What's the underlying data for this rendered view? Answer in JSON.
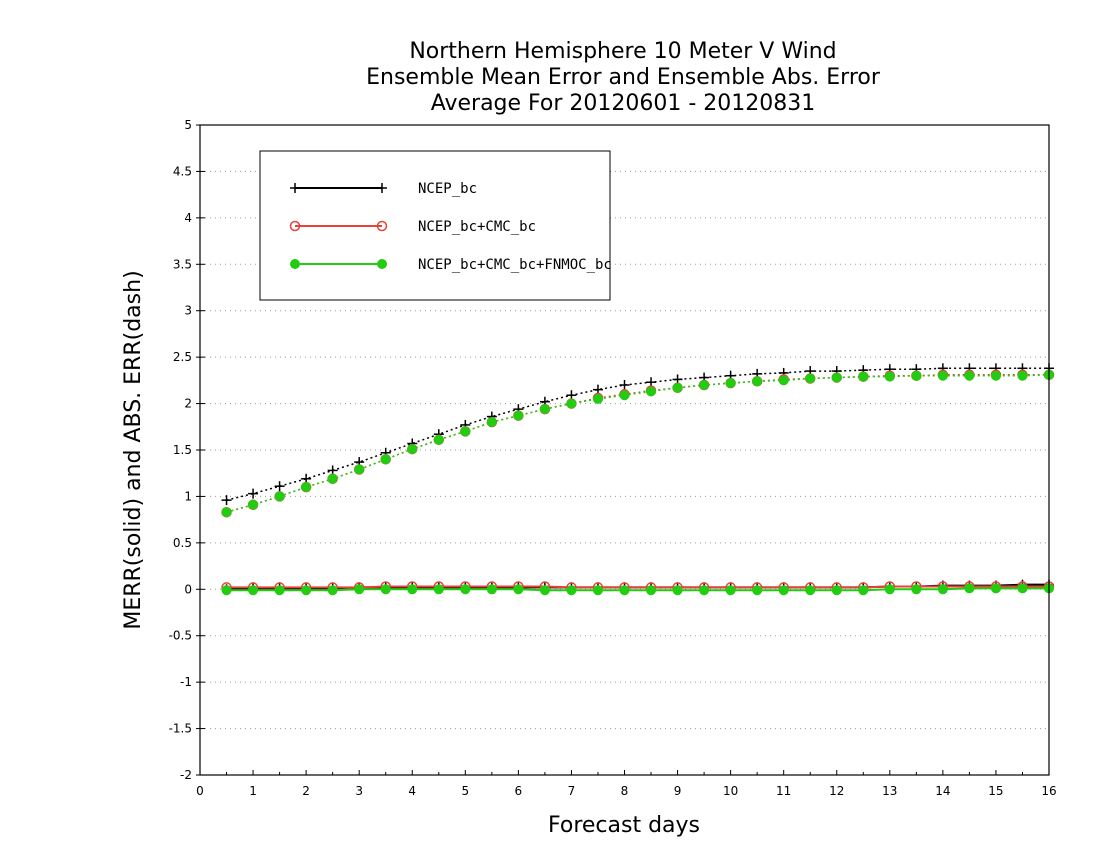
{
  "chart_data": {
    "type": "line",
    "title_lines": [
      "Northern Hemisphere 10 Meter V Wind",
      "Ensemble Mean Error and Ensemble Abs. Error",
      "Average For 20120601 - 20120831"
    ],
    "xlabel": "Forecast days",
    "ylabel": "MERR(solid) and ABS. ERR(dash)",
    "xlim": [
      0,
      16
    ],
    "ylim": [
      -2,
      5
    ],
    "x_ticks": [
      0,
      1,
      2,
      3,
      4,
      5,
      6,
      7,
      8,
      9,
      10,
      11,
      12,
      13,
      14,
      15,
      16
    ],
    "y_ticks": [
      -2,
      -1.5,
      -1,
      -0.5,
      0,
      0.5,
      1,
      1.5,
      2,
      2.5,
      3,
      3.5,
      4,
      4.5,
      5
    ],
    "y_tick_labels": [
      "-2",
      "-1.5",
      "-1",
      "-0.5",
      "0",
      "0.5",
      "1",
      "1.5",
      "2",
      "2.5",
      "3",
      "3.5",
      "4",
      "4.5",
      "5"
    ],
    "grid": "horizontal dotted",
    "legend_position": "top-left",
    "x": [
      0.5,
      1,
      1.5,
      2,
      2.5,
      3,
      3.5,
      4,
      4.5,
      5,
      5.5,
      6,
      6.5,
      7,
      7.5,
      8,
      8.5,
      9,
      9.5,
      10,
      10.5,
      11,
      11.5,
      12,
      12.5,
      13,
      13.5,
      14,
      14.5,
      15,
      15.5,
      16
    ],
    "series": [
      {
        "name": "NCEP_bc",
        "color": "#000000",
        "marker": "plus",
        "abs_err": [
          0.96,
          1.03,
          1.11,
          1.19,
          1.28,
          1.37,
          1.47,
          1.57,
          1.67,
          1.77,
          1.86,
          1.94,
          2.02,
          2.09,
          2.15,
          2.2,
          2.23,
          2.26,
          2.28,
          2.3,
          2.32,
          2.33,
          2.35,
          2.35,
          2.36,
          2.37,
          2.37,
          2.38,
          2.38,
          2.38,
          2.38,
          2.38
        ],
        "mean_err": [
          0.0,
          0.01,
          0.01,
          0.01,
          0.01,
          0.02,
          0.02,
          0.02,
          0.02,
          0.02,
          0.02,
          0.02,
          0.02,
          0.02,
          0.02,
          0.02,
          0.02,
          0.02,
          0.02,
          0.02,
          0.02,
          0.02,
          0.02,
          0.02,
          0.02,
          0.03,
          0.03,
          0.04,
          0.04,
          0.04,
          0.05,
          0.05
        ]
      },
      {
        "name": "NCEP_bc+CMC_bc",
        "color": "#e8413a",
        "marker": "open-circle",
        "abs_err": [
          0.83,
          0.91,
          1.0,
          1.1,
          1.19,
          1.29,
          1.4,
          1.51,
          1.61,
          1.7,
          1.8,
          1.87,
          1.94,
          2.0,
          2.06,
          2.1,
          2.14,
          2.17,
          2.2,
          2.22,
          2.24,
          2.26,
          2.27,
          2.28,
          2.29,
          2.3,
          2.3,
          2.31,
          2.31,
          2.31,
          2.31,
          2.31
        ],
        "mean_err": [
          0.02,
          0.02,
          0.02,
          0.02,
          0.02,
          0.02,
          0.03,
          0.03,
          0.03,
          0.03,
          0.03,
          0.03,
          0.03,
          0.02,
          0.02,
          0.02,
          0.02,
          0.02,
          0.02,
          0.02,
          0.02,
          0.02,
          0.02,
          0.02,
          0.02,
          0.03,
          0.03,
          0.03,
          0.03,
          0.03,
          0.03,
          0.03
        ]
      },
      {
        "name": "NCEP_bc+CMC_bc+FNMOC_bc",
        "color": "#22cc11",
        "marker": "filled-circle",
        "abs_err": [
          0.83,
          0.91,
          1.0,
          1.1,
          1.19,
          1.29,
          1.4,
          1.51,
          1.61,
          1.7,
          1.8,
          1.87,
          1.94,
          2.0,
          2.05,
          2.09,
          2.13,
          2.17,
          2.2,
          2.22,
          2.24,
          2.25,
          2.27,
          2.28,
          2.29,
          2.29,
          2.3,
          2.3,
          2.3,
          2.3,
          2.3,
          2.31
        ],
        "mean_err": [
          -0.01,
          -0.01,
          -0.01,
          -0.01,
          -0.01,
          0.0,
          0.0,
          0.0,
          0.0,
          0.0,
          0.0,
          0.0,
          -0.01,
          -0.01,
          -0.01,
          -0.01,
          -0.01,
          -0.01,
          -0.01,
          -0.01,
          -0.01,
          -0.01,
          -0.01,
          -0.01,
          -0.01,
          0.0,
          0.0,
          0.0,
          0.01,
          0.01,
          0.01,
          0.01
        ]
      }
    ]
  }
}
